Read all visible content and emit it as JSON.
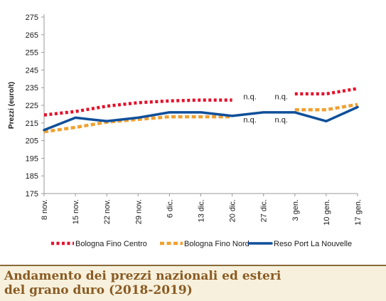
{
  "chart_data": {
    "type": "line",
    "title": "",
    "xlabel": "",
    "ylabel": "Prezzi (euro/t)",
    "ylim": [
      175,
      275
    ],
    "yticks": [
      175,
      185,
      195,
      205,
      215,
      225,
      235,
      245,
      255,
      265,
      275
    ],
    "categories": [
      "8 nov.",
      "15 nov.",
      "22 nov.",
      "29 nov.",
      "6 dic.",
      "13 dic.",
      "20 dic.",
      "27 dic.",
      "3 gen.",
      "10 gen.",
      "17 gen."
    ],
    "grid": false,
    "legend_position": "bottom",
    "series": [
      {
        "name": "Bologna Fino Centro",
        "style": "dotted",
        "color": "#e3122b",
        "values": [
          219.5,
          221.5,
          224.5,
          226.5,
          227.5,
          228,
          228,
          null,
          231.5,
          231.5,
          234.5
        ]
      },
      {
        "name": "Bologna Fino Nord",
        "style": "dashed",
        "color": "#f0a030",
        "values": [
          210,
          212.5,
          215.5,
          217,
          218.5,
          218.5,
          218.5,
          null,
          222.5,
          222.5,
          225.5
        ]
      },
      {
        "name": "Reso Port La Nouvelle",
        "style": "solid",
        "color": "#0f4f9a",
        "values": [
          211,
          218,
          216,
          218,
          221,
          221,
          219,
          221,
          221,
          216,
          224
        ]
      }
    ],
    "annotations": [
      {
        "text": "n.q.",
        "x": "20 dic.",
        "y": 230
      },
      {
        "text": "n.q.",
        "x": "27 dic.",
        "y": 230
      },
      {
        "text": "n.q.",
        "x": "20 dic.",
        "y": 217
      },
      {
        "text": "n.q.",
        "x": "27 dic.",
        "y": 217
      }
    ]
  },
  "caption": {
    "line1": "Andamento dei prezzi nazionali ed esteri",
    "line2": "del grano duro (2018-2019)"
  }
}
